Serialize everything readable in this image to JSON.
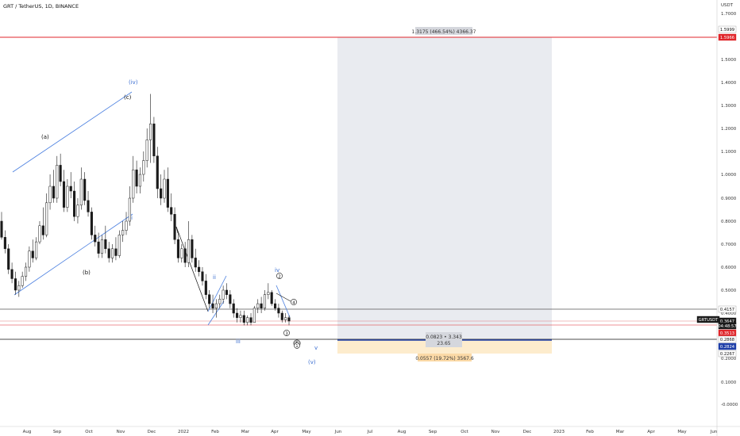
{
  "header": {
    "title": "GRT / TetherUS, 1D, BINANCE"
  },
  "axis": {
    "currency": "USDT"
  },
  "colors": {
    "candle": "#1a1a1a",
    "wave": "#3d6fd1",
    "channel": "#4a7fe0",
    "grid_line": "#000000",
    "target_line": "#e0262b",
    "entry_line": "#1e3fa8",
    "range_fill": "#e9ebf0",
    "stop_fill": "#fdeccd",
    "badge_red": "#e0262b",
    "badge_blue": "#1e3fa8",
    "badge_dark": "#1a1a1a",
    "mint": "#2c8c6b"
  },
  "chart_data": {
    "type": "candlestick",
    "title": "GRT / TetherUS, 1D, BINANCE",
    "y_scale": "log",
    "y_ticks": [
      "1.7000",
      "1.5000",
      "1.4000",
      "1.3000",
      "1.2000",
      "1.1000",
      "1.0000",
      "0.9000",
      "0.8000",
      "0.7000",
      "0.6000",
      "0.5000",
      "0.4000",
      "0.3000",
      "0.2000",
      "0.1000",
      "-0.0000"
    ],
    "x_ticks": [
      "Aug",
      "Sep",
      "Oct",
      "Nov",
      "Dec",
      "2022",
      "Feb",
      "Mar",
      "Apr",
      "May",
      "Jun",
      "Jul",
      "Aug",
      "Sep",
      "Oct",
      "Nov",
      "Dec",
      "2023",
      "Feb",
      "Mar",
      "Apr",
      "May",
      "Jun"
    ],
    "price_badges": [
      {
        "value": "1.5999",
        "style": "plain"
      },
      {
        "value": "1.5966",
        "style": "red"
      },
      {
        "value": "0.4157",
        "style": "plain"
      },
      {
        "value": "GRTUSDT",
        "style": "dark"
      },
      {
        "value": "0.3647",
        "style": "dark"
      },
      {
        "value": "04:48:57",
        "style": "dark"
      },
      {
        "value": "0.3513",
        "style": "red"
      },
      {
        "value": "0.2868",
        "style": "plain"
      },
      {
        "value": "0.2824",
        "style": "blue"
      },
      {
        "value": "0.2267",
        "style": "plain"
      }
    ],
    "wave_labels": [
      "(iv)",
      "(c)",
      "(a)",
      "(b)",
      "i",
      "iv",
      "ii",
      "iii",
      "v",
      "(v)"
    ],
    "circled_labels": [
      "2",
      "4",
      "3",
      "5",
      "1"
    ],
    "levels": {
      "target": 1.5966,
      "resistance": 0.4157,
      "current": 0.3647,
      "near": 0.3513,
      "entry": 0.2868,
      "stop": 0.2267
    },
    "measurement_labels": {
      "target": "1.3175 (466.54%) 4366.37",
      "ratio": "0.0823 • 3.343",
      "ratio_sub": "23.65",
      "stop": "0.0557 (19.72%) 3567.6"
    },
    "candles": [
      [
        0.8,
        0.84,
        0.72,
        0.73
      ],
      [
        0.73,
        0.76,
        0.66,
        0.68
      ],
      [
        0.68,
        0.7,
        0.57,
        0.59
      ],
      [
        0.59,
        0.62,
        0.53,
        0.55
      ],
      [
        0.55,
        0.58,
        0.48,
        0.5
      ],
      [
        0.5,
        0.54,
        0.47,
        0.52
      ],
      [
        0.52,
        0.58,
        0.51,
        0.56
      ],
      [
        0.56,
        0.62,
        0.54,
        0.6
      ],
      [
        0.6,
        0.69,
        0.58,
        0.67
      ],
      [
        0.67,
        0.72,
        0.62,
        0.64
      ],
      [
        0.64,
        0.73,
        0.63,
        0.71
      ],
      [
        0.71,
        0.8,
        0.7,
        0.78
      ],
      [
        0.78,
        0.86,
        0.72,
        0.74
      ],
      [
        0.74,
        0.92,
        0.73,
        0.88
      ],
      [
        0.88,
        1,
        0.85,
        0.95
      ],
      [
        0.95,
        1.02,
        0.88,
        0.9
      ],
      [
        0.9,
        1.08,
        0.88,
        1.04
      ],
      [
        1.04,
        1.09,
        0.95,
        0.97
      ],
      [
        0.97,
        1.02,
        0.84,
        0.86
      ],
      [
        0.86,
        0.98,
        0.84,
        0.95
      ],
      [
        0.95,
        1.01,
        0.9,
        0.93
      ],
      [
        0.93,
        0.97,
        0.8,
        0.82
      ],
      [
        0.82,
        0.9,
        0.79,
        0.87
      ],
      [
        0.87,
        1.03,
        0.85,
        0.98
      ],
      [
        0.98,
        1.01,
        0.87,
        0.89
      ],
      [
        0.89,
        0.93,
        0.82,
        0.84
      ],
      [
        0.84,
        0.86,
        0.72,
        0.74
      ],
      [
        0.74,
        0.78,
        0.69,
        0.71
      ],
      [
        0.71,
        0.75,
        0.64,
        0.66
      ],
      [
        0.66,
        0.74,
        0.64,
        0.72
      ],
      [
        0.72,
        0.78,
        0.66,
        0.68
      ],
      [
        0.68,
        0.71,
        0.62,
        0.64
      ],
      [
        0.64,
        0.7,
        0.62,
        0.68
      ],
      [
        0.68,
        0.73,
        0.63,
        0.65
      ],
      [
        0.65,
        0.76,
        0.64,
        0.74
      ],
      [
        0.74,
        0.8,
        0.71,
        0.76
      ],
      [
        0.76,
        0.84,
        0.74,
        0.8
      ],
      [
        0.8,
        0.95,
        0.78,
        0.9
      ],
      [
        0.9,
        1.08,
        0.88,
        1.02
      ],
      [
        1.02,
        1.06,
        0.92,
        0.95
      ],
      [
        0.95,
        1.03,
        0.92,
        1
      ],
      [
        1,
        1.1,
        0.97,
        1.06
      ],
      [
        1.06,
        1.2,
        1.03,
        1.15
      ],
      [
        1.15,
        1.35,
        1.05,
        1.22
      ],
      [
        1.22,
        1.25,
        1.05,
        1.08
      ],
      [
        1.08,
        1.12,
        0.9,
        0.94
      ],
      [
        0.94,
        1,
        0.87,
        0.9
      ],
      [
        0.9,
        1.02,
        0.88,
        0.98
      ],
      [
        0.98,
        1.03,
        0.84,
        0.86
      ],
      [
        0.86,
        0.92,
        0.8,
        0.83
      ],
      [
        0.83,
        0.86,
        0.7,
        0.72
      ],
      [
        0.72,
        0.75,
        0.62,
        0.64
      ],
      [
        0.64,
        0.7,
        0.62,
        0.68
      ],
      [
        0.68,
        0.71,
        0.6,
        0.62
      ],
      [
        0.62,
        0.8,
        0.6,
        0.72
      ],
      [
        0.72,
        0.74,
        0.62,
        0.64
      ],
      [
        0.64,
        0.68,
        0.58,
        0.6
      ],
      [
        0.6,
        0.63,
        0.56,
        0.58
      ],
      [
        0.58,
        0.6,
        0.52,
        0.54
      ],
      [
        0.54,
        0.57,
        0.46,
        0.48
      ],
      [
        0.48,
        0.5,
        0.42,
        0.44
      ],
      [
        0.44,
        0.48,
        0.4,
        0.42
      ],
      [
        0.42,
        0.46,
        0.38,
        0.44
      ],
      [
        0.44,
        0.48,
        0.42,
        0.46
      ],
      [
        0.46,
        0.52,
        0.44,
        0.5
      ],
      [
        0.5,
        0.53,
        0.46,
        0.48
      ],
      [
        0.48,
        0.5,
        0.42,
        0.44
      ],
      [
        0.44,
        0.46,
        0.38,
        0.4
      ],
      [
        0.4,
        0.42,
        0.36,
        0.38
      ],
      [
        0.38,
        0.41,
        0.36,
        0.39
      ],
      [
        0.39,
        0.41,
        0.35,
        0.36
      ],
      [
        0.36,
        0.39,
        0.35,
        0.38
      ],
      [
        0.38,
        0.4,
        0.35,
        0.36
      ],
      [
        0.36,
        0.43,
        0.36,
        0.42
      ],
      [
        0.42,
        0.46,
        0.4,
        0.44
      ],
      [
        0.44,
        0.47,
        0.4,
        0.42
      ],
      [
        0.42,
        0.5,
        0.41,
        0.48
      ],
      [
        0.48,
        0.53,
        0.46,
        0.49
      ],
      [
        0.49,
        0.5,
        0.43,
        0.44
      ],
      [
        0.44,
        0.46,
        0.41,
        0.42
      ],
      [
        0.42,
        0.44,
        0.38,
        0.4
      ],
      [
        0.4,
        0.41,
        0.36,
        0.37
      ],
      [
        0.37,
        0.4,
        0.36,
        0.38
      ],
      [
        0.38,
        0.39,
        0.35,
        0.3647
      ]
    ]
  }
}
